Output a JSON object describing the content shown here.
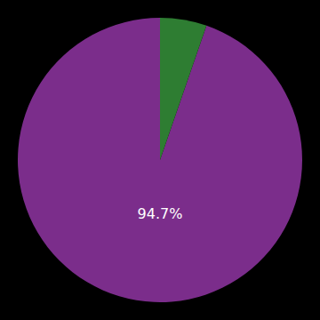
{
  "chart_data": {
    "type": "pie",
    "values": [
      94.7,
      5.3
    ],
    "colors": [
      "#7b2d8b",
      "#2e7d32"
    ],
    "annotations": [
      "94.7%"
    ]
  }
}
